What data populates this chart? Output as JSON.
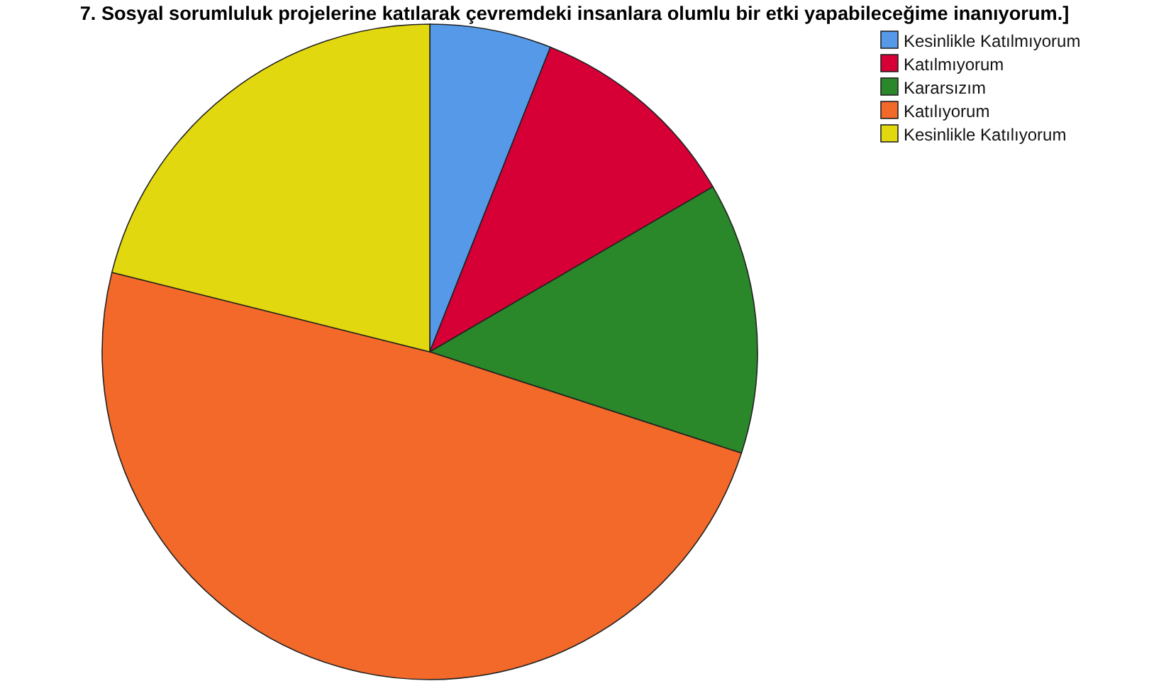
{
  "chart_data": {
    "type": "pie",
    "title": "7. Sosyal sorumluluk projelerine katılarak çevremdeki insanlara olumlu bir etki yapabileceğime inanıyorum.]",
    "categories": [
      "Kesinlikle Katılmıyorum",
      "Katılmıyorum",
      "Kararsızım",
      "Katılıyorum",
      "Kesinlikle Katılıyorum"
    ],
    "values": [
      6,
      10.6,
      13.4,
      48.9,
      21.1
    ],
    "colors": [
      "#5599e8",
      "#d60036",
      "#2a882a",
      "#f2692a",
      "#e2d80f"
    ],
    "legend": "top right"
  }
}
